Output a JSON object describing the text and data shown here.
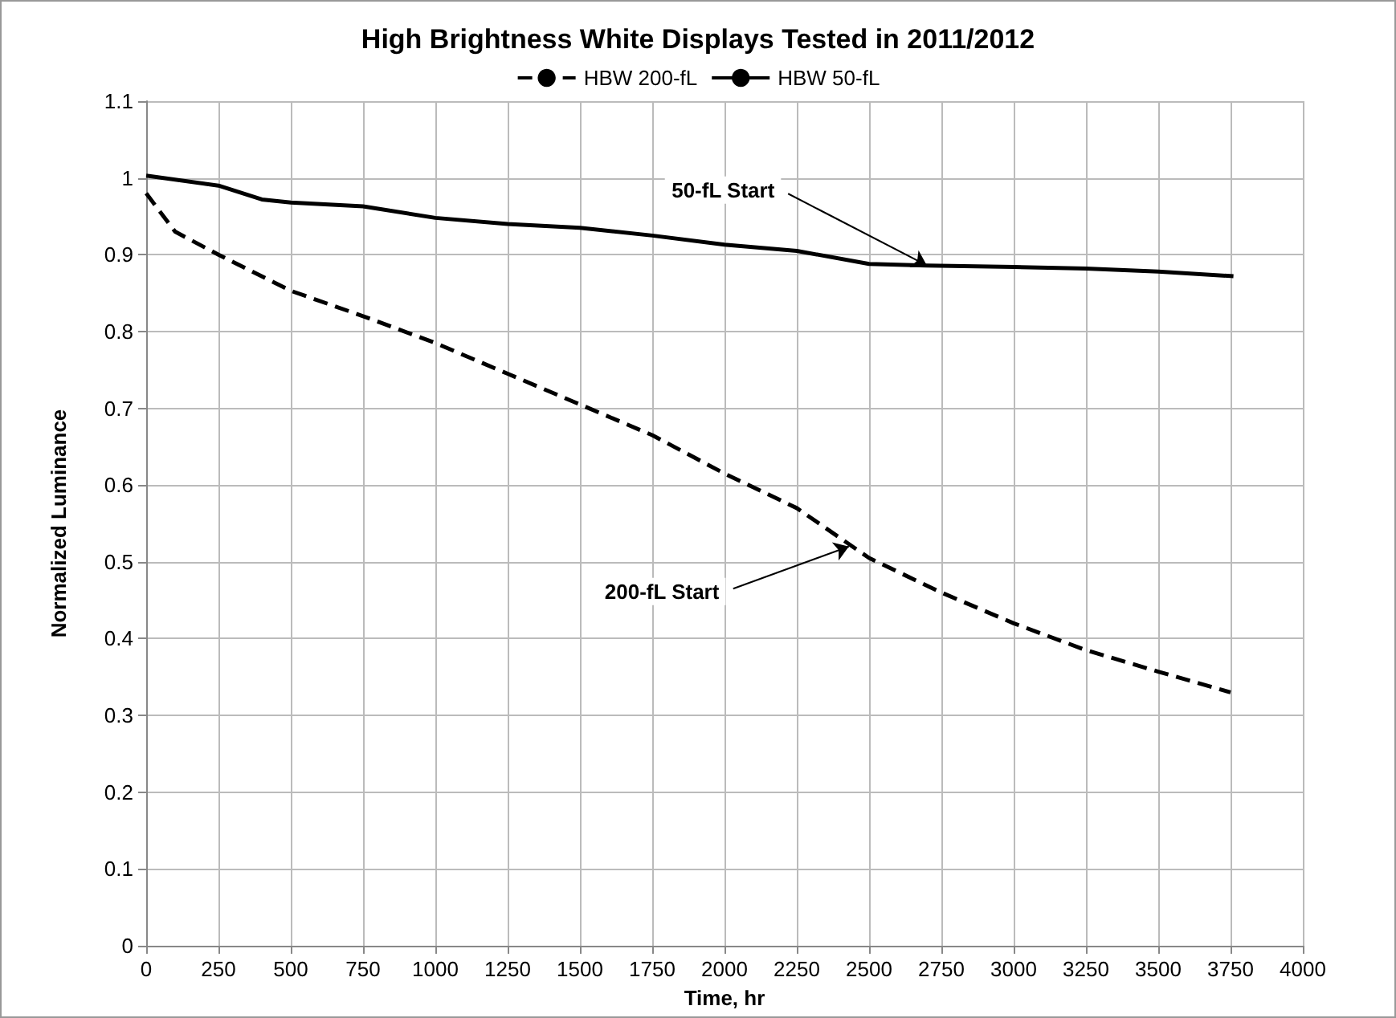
{
  "chart_data": {
    "type": "line",
    "title": "High Brightness White Displays Tested in 2011/2012",
    "xlabel": "Time, hr",
    "ylabel": "Normalized Luminance",
    "series": [
      {
        "name": "HBW 200-fL",
        "color": "#000000",
        "line_style": "dashed",
        "x": [
          0,
          100,
          250,
          500,
          750,
          1000,
          1250,
          1500,
          1750,
          2000,
          2250,
          2500,
          2750,
          3000,
          3250,
          3500,
          3750
        ],
        "values": [
          0.98,
          0.93,
          0.9,
          0.853,
          0.82,
          0.785,
          0.745,
          0.705,
          0.665,
          0.615,
          0.57,
          0.505,
          0.46,
          0.42,
          0.385,
          0.357,
          0.33
        ]
      },
      {
        "name": "HBW 50-fL",
        "color": "#000000",
        "line_style": "solid",
        "x": [
          0,
          250,
          400,
          500,
          750,
          1000,
          1250,
          1500,
          1750,
          2000,
          2250,
          2500,
          2700,
          3000,
          3250,
          3500,
          3760
        ],
        "values": [
          1.003,
          0.99,
          0.972,
          0.968,
          0.963,
          0.948,
          0.94,
          0.935,
          0.925,
          0.913,
          0.905,
          0.888,
          0.886,
          0.884,
          0.882,
          0.878,
          0.872
        ]
      }
    ],
    "annotations": [
      {
        "text": "50-fL Start",
        "x": 2700,
        "y": 0.886
      },
      {
        "text": "200-fL Start",
        "x": 2430,
        "y": 0.52
      }
    ],
    "xlim": [
      0,
      4000
    ],
    "xticks": [
      0,
      250,
      500,
      750,
      1000,
      1250,
      1500,
      1750,
      2000,
      2250,
      2500,
      2750,
      3000,
      3250,
      3500,
      3750,
      4000
    ],
    "ylim": [
      0,
      1.1
    ],
    "yticks": [
      0,
      0.1,
      0.2,
      0.3,
      0.4,
      0.5,
      0.6,
      0.7,
      0.8,
      0.9,
      1,
      1.1
    ],
    "grid": true,
    "legend": "top",
    "marker": "none"
  }
}
